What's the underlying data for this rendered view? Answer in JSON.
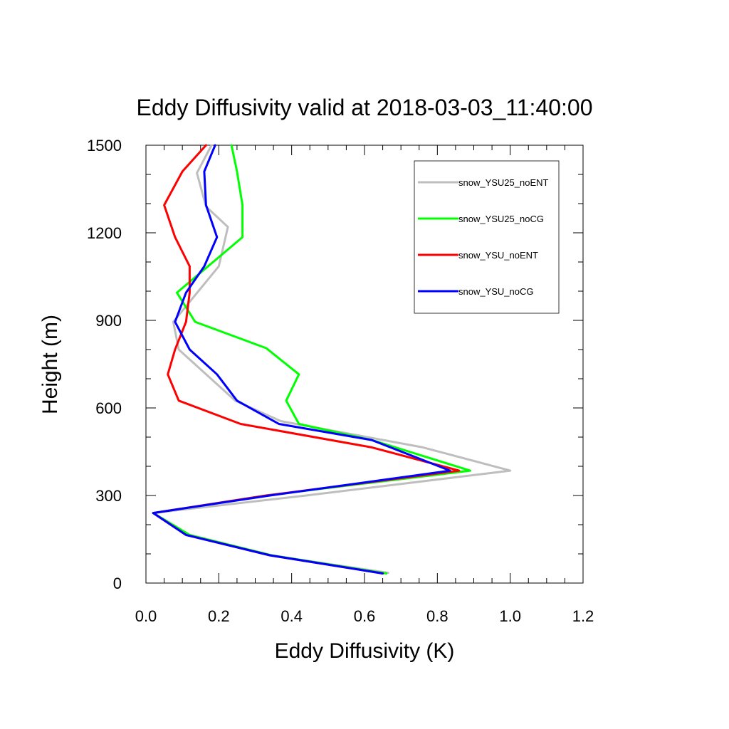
{
  "chart_data": {
    "type": "line",
    "title": "Eddy Diffusivity valid at 2018-03-03_11:40:00",
    "xlabel": "Eddy Diffusivity (K)",
    "ylabel": "Height (m)",
    "xlim": [
      0.0,
      1.2
    ],
    "ylim": [
      0,
      1500
    ],
    "xticks": [
      0.0,
      0.2,
      0.4,
      0.6,
      0.8,
      1.0,
      1.2
    ],
    "xtick_labels": [
      "0.0",
      "0.2",
      "0.4",
      "0.6",
      "0.8",
      "1.0",
      "1.2"
    ],
    "yticks": [
      0,
      300,
      600,
      900,
      1200,
      1500
    ],
    "ytick_labels": [
      "0",
      "300",
      "600",
      "900",
      "1200",
      "1500"
    ],
    "grid": false,
    "legend_position": "top-right",
    "series": [
      {
        "name": "snow_YSU25_noENT",
        "color": "#bebebe",
        "x": [
          0.665,
          0.34,
          0.12,
          0.02,
          0.44,
          1.0,
          0.76,
          0.37,
          0.245,
          0.09,
          0.075,
          0.2,
          0.225,
          0.165,
          0.14,
          0.18
        ],
        "y": [
          35,
          95,
          165,
          240,
          300,
          385,
          465,
          555,
          625,
          800,
          895,
          1085,
          1220,
          1290,
          1405,
          1500
        ]
      },
      {
        "name": "snow_YSU25_noCG",
        "color": "#00ff00",
        "x": [
          0.66,
          0.345,
          0.12,
          0.02,
          0.33,
          0.89,
          0.62,
          0.42,
          0.385,
          0.42,
          0.33,
          0.135,
          0.085,
          0.265,
          0.265,
          0.25,
          0.235
        ],
        "y": [
          33,
          95,
          165,
          240,
          300,
          385,
          490,
          545,
          625,
          715,
          805,
          895,
          995,
          1185,
          1295,
          1410,
          1500
        ]
      },
      {
        "name": "snow_YSU_noENT",
        "color": "#ff0000",
        "x": [
          0.65,
          0.34,
          0.11,
          0.02,
          0.33,
          0.86,
          0.62,
          0.26,
          0.09,
          0.06,
          0.08,
          0.11,
          0.12,
          0.12,
          0.08,
          0.05,
          0.1,
          0.165
        ],
        "y": [
          33,
          95,
          165,
          240,
          300,
          385,
          465,
          545,
          625,
          715,
          800,
          895,
          995,
          1085,
          1185,
          1295,
          1410,
          1500
        ]
      },
      {
        "name": "snow_YSU_noCG",
        "color": "#0000ff",
        "x": [
          0.65,
          0.34,
          0.11,
          0.02,
          0.34,
          0.835,
          0.62,
          0.365,
          0.25,
          0.195,
          0.12,
          0.08,
          0.11,
          0.16,
          0.195,
          0.165,
          0.16,
          0.19
        ],
        "y": [
          33,
          95,
          165,
          240,
          300,
          385,
          490,
          545,
          625,
          715,
          800,
          895,
          995,
          1085,
          1185,
          1295,
          1410,
          1500
        ]
      }
    ]
  }
}
